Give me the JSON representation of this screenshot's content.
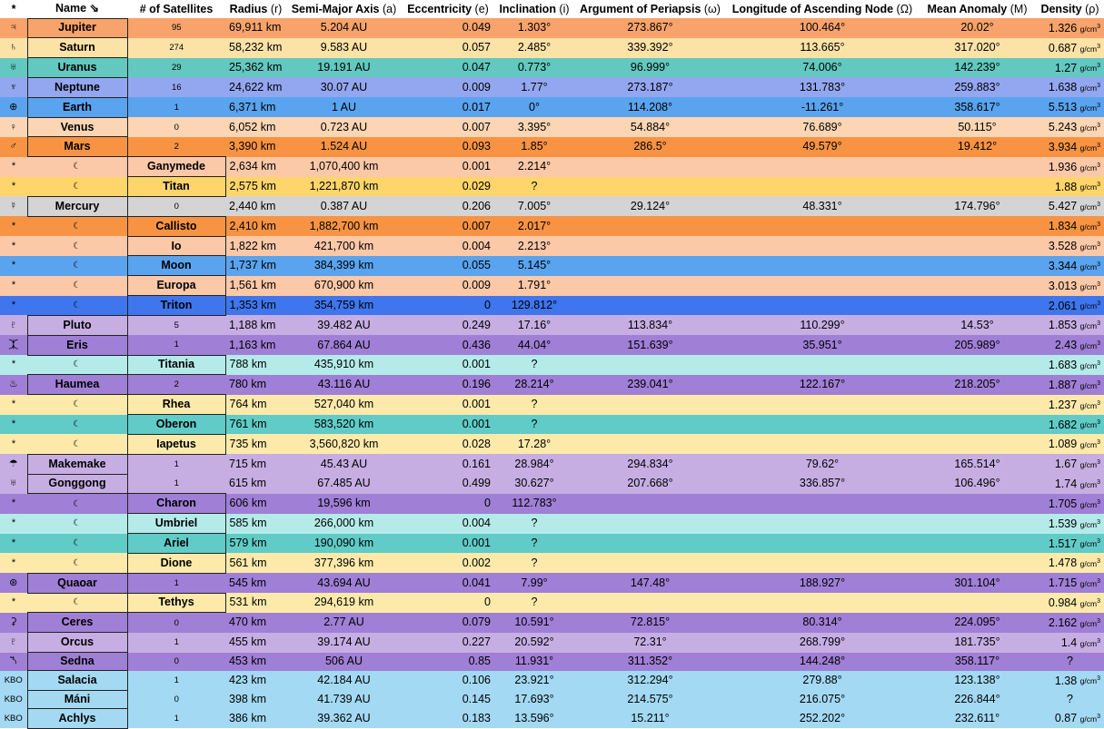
{
  "headers": [
    {
      "main": "*",
      "sub": ""
    },
    {
      "main": "Name",
      "sub": "",
      "icon": "sort-arrow-icon"
    },
    {
      "main": "# of Satellites",
      "sub": ""
    },
    {
      "main": "Radius",
      "sub": "(r)"
    },
    {
      "main": "Semi-Major Axis",
      "sub": "(a)"
    },
    {
      "main": "Eccentricity",
      "sub": "(e)"
    },
    {
      "main": "Inclination",
      "sub": "(i)"
    },
    {
      "main": "Argument of Periapsis",
      "sub": "(ω)"
    },
    {
      "main": "Longitude of Ascending Node",
      "sub": "(Ω)"
    },
    {
      "main": "Mean Anomaly",
      "sub": "(M)"
    },
    {
      "main": "Density",
      "sub": "(ρ)"
    }
  ],
  "density_unit": "g/cm",
  "density_exp": "3",
  "moon_marker": "☾",
  "colors": {
    "orange": "#f8a36b",
    "tan": "#fbe2a6",
    "teal": "#62c8c0",
    "periwinkle": "#93a7f0",
    "blue": "#5aa3ef",
    "peach": "#fcd5b4",
    "darkorange": "#f79343",
    "salmon": "#fbc8a8",
    "gold": "#fdd56a",
    "grey": "#d4d4d4",
    "deepblue": "#3f76ee",
    "lavender": "#c6aee3",
    "purple": "#a07fd6",
    "aqua": "#b4ebe8",
    "cream": "#fdeaaa",
    "lightteal": "#60cbc7",
    "sky": "#a3d9f2",
    "white": "#ffffff"
  },
  "rows": [
    {
      "type": "p",
      "sym": "♃",
      "name": "Jupiter",
      "sats": "95",
      "r": "69,911 km",
      "a": "5.204 AU",
      "e": "0.049",
      "i": "1.303°",
      "w": "273.867°",
      "O": "100.464°",
      "M": "20.02°",
      "rho": "1.326",
      "color": "#f8a36b",
      "ncolor": "#f8a36b"
    },
    {
      "type": "p",
      "sym": "♄",
      "name": "Saturn",
      "sats": "274",
      "r": "58,232 km",
      "a": "9.583 AU",
      "e": "0.057",
      "i": "2.485°",
      "w": "339.392°",
      "O": "113.665°",
      "M": "317.020°",
      "rho": "0.687",
      "color": "#fbe2a6",
      "ncolor": "#fbe2a6"
    },
    {
      "type": "p",
      "sym": "♅",
      "name": "Uranus",
      "sats": "29",
      "r": "25,362 km",
      "a": "19.191 AU",
      "e": "0.047",
      "i": "0.773°",
      "w": "96.999°",
      "O": "74.006°",
      "M": "142.239°",
      "rho": "1.27",
      "color": "#62c8c0",
      "ncolor": "#62c8c0"
    },
    {
      "type": "p",
      "sym": "♆",
      "name": "Neptune",
      "sats": "16",
      "r": "24,622 km",
      "a": "30.07 AU",
      "e": "0.009",
      "i": "1.77°",
      "w": "273.187°",
      "O": "131.783°",
      "M": "259.883°",
      "rho": "1.638",
      "color": "#93a7f0",
      "ncolor": "#93a7f0"
    },
    {
      "type": "p",
      "sym": "⊕",
      "name": "Earth",
      "sats": "1",
      "r": "6,371 km",
      "a": "1 AU",
      "e": "0.017",
      "i": "0°",
      "w": "114.208°",
      "O": "-11.261°",
      "M": "358.617°",
      "rho": "5.513",
      "color": "#5aa3ef",
      "ncolor": "#5aa3ef"
    },
    {
      "type": "p",
      "sym": "♀",
      "name": "Venus",
      "sats": "0",
      "r": "6,052 km",
      "a": "0.723 AU",
      "e": "0.007",
      "i": "3.395°",
      "w": "54.884°",
      "O": "76.689°",
      "M": "50.115°",
      "rho": "5.243",
      "color": "#fcd5b4",
      "ncolor": "#fcd5b4"
    },
    {
      "type": "p",
      "sym": "♂",
      "name": "Mars",
      "sats": "2",
      "r": "3,390 km",
      "a": "1.524 AU",
      "e": "0.093",
      "i": "1.85°",
      "w": "286.5°",
      "O": "49.579°",
      "M": "19.412°",
      "rho": "3.934",
      "color": "#f79343",
      "ncolor": "#f79343"
    },
    {
      "type": "m",
      "sym": "*",
      "name": "Ganymede",
      "r": "2,634 km",
      "a": "1,070,400 km",
      "e": "0.001",
      "i": "2.214°",
      "rho": "1.936",
      "color": "#fbc8a8",
      "ncolor": "#fbc8a8"
    },
    {
      "type": "m",
      "sym": "*",
      "name": "Titan",
      "r": "2,575 km",
      "a": "1,221,870 km",
      "e": "0.029",
      "i": "?",
      "rho": "1.88",
      "color": "#fdd56a",
      "ncolor": "#fdd56a"
    },
    {
      "type": "p",
      "sym": "☿",
      "name": "Mercury",
      "sats": "0",
      "r": "2,440 km",
      "a": "0.387 AU",
      "e": "0.206",
      "i": "7.005°",
      "w": "29.124°",
      "O": "48.331°",
      "M": "174.796°",
      "rho": "5.427",
      "color": "#d4d4d4",
      "ncolor": "#d4d4d4"
    },
    {
      "type": "m",
      "sym": "*",
      "name": "Callisto",
      "r": "2,410 km",
      "a": "1,882,700 km",
      "e": "0.007",
      "i": "2.017°",
      "rho": "1.834",
      "color": "#f79343",
      "ncolor": "#f79343"
    },
    {
      "type": "m",
      "sym": "*",
      "name": "Io",
      "r": "1,822 km",
      "a": "421,700 km",
      "e": "0.004",
      "i": "2.213°",
      "rho": "3.528",
      "color": "#fbc8a8",
      "ncolor": "#fbc8a8"
    },
    {
      "type": "m",
      "sym": "*",
      "name": "Moon",
      "r": "1,737 km",
      "a": "384,399 km",
      "e": "0.055",
      "i": "5.145°",
      "rho": "3.344",
      "color": "#5aa3ef",
      "ncolor": "#5aa3ef"
    },
    {
      "type": "m",
      "sym": "*",
      "name": "Europa",
      "r": "1,561 km",
      "a": "670,900 km",
      "e": "0.009",
      "i": "1.791°",
      "rho": "3.013",
      "color": "#fbc8a8",
      "ncolor": "#fbc8a8"
    },
    {
      "type": "m",
      "sym": "*",
      "name": "Triton",
      "r": "1,353 km",
      "a": "354,759 km",
      "e": "0",
      "i": "129.812°",
      "rho": "2.061",
      "color": "#3f76ee",
      "ncolor": "#3f76ee"
    },
    {
      "type": "p",
      "sym": "♇",
      "name": "Pluto",
      "sats": "5",
      "r": "1,188 km",
      "a": "39.482 AU",
      "e": "0.249",
      "i": "17.16°",
      "w": "113.834°",
      "O": "110.299°",
      "M": "14.53°",
      "rho": "1.853",
      "color": "#c6aee3",
      "ncolor": "#c6aee3"
    },
    {
      "type": "p",
      "sym": "⯰",
      "name": "Eris",
      "sats": "1",
      "r": "1,163 km",
      "a": "67.864 AU",
      "e": "0.436",
      "i": "44.04°",
      "w": "151.639°",
      "O": "35.951°",
      "M": "205.989°",
      "rho": "2.43",
      "color": "#a07fd6",
      "ncolor": "#a07fd6"
    },
    {
      "type": "m",
      "sym": "*",
      "name": "Titania",
      "r": "788 km",
      "a": "435,910 km",
      "e": "0.001",
      "i": "?",
      "rho": "1.683",
      "color": "#b4ebe8",
      "ncolor": "#b4ebe8"
    },
    {
      "type": "p",
      "sym": "♨",
      "name": "Haumea",
      "sats": "2",
      "r": "780 km",
      "a": "43.116 AU",
      "e": "0.196",
      "i": "28.214°",
      "w": "239.041°",
      "O": "122.167°",
      "M": "218.205°",
      "rho": "1.887",
      "color": "#a07fd6",
      "ncolor": "#a07fd6"
    },
    {
      "type": "m",
      "sym": "*",
      "name": "Rhea",
      "r": "764 km",
      "a": "527,040 km",
      "e": "0.001",
      "i": "?",
      "rho": "1.237",
      "color": "#fdeaaa",
      "ncolor": "#fdeaaa"
    },
    {
      "type": "m",
      "sym": "*",
      "name": "Oberon",
      "r": "761 km",
      "a": "583,520 km",
      "e": "0.001",
      "i": "?",
      "rho": "1.682",
      "color": "#60cbc7",
      "ncolor": "#60cbc7"
    },
    {
      "type": "m",
      "sym": "*",
      "name": "Iapetus",
      "r": "735 km",
      "a": "3,560,820 km",
      "e": "0.028",
      "i": "17.28°",
      "rho": "1.089",
      "color": "#fdeaaa",
      "ncolor": "#fdeaaa"
    },
    {
      "type": "p",
      "sym": "☂",
      "name": "Makemake",
      "sats": "1",
      "r": "715 km",
      "a": "45.43 AU",
      "e": "0.161",
      "i": "28.984°",
      "w": "294.834°",
      "O": "79.62°",
      "M": "165.514°",
      "rho": "1.67",
      "color": "#c6aee3",
      "ncolor": "#c6aee3"
    },
    {
      "type": "p",
      "sym": "♅",
      "name": "Gonggong",
      "sats": "1",
      "r": "615 km",
      "a": "67.485 AU",
      "e": "0.499",
      "i": "30.627°",
      "w": "207.668°",
      "O": "336.857°",
      "M": "106.496°",
      "rho": "1.74",
      "color": "#c6aee3",
      "ncolor": "#c6aee3"
    },
    {
      "type": "m",
      "sym": "*",
      "name": "Charon",
      "r": "606 km",
      "a": "19,596 km",
      "e": "0",
      "i": "112.783°",
      "rho": "1.705",
      "color": "#a07fd6",
      "ncolor": "#a07fd6"
    },
    {
      "type": "m",
      "sym": "*",
      "name": "Umbriel",
      "r": "585 km",
      "a": "266,000 km",
      "e": "0.004",
      "i": "?",
      "rho": "1.539",
      "color": "#b4ebe8",
      "ncolor": "#b4ebe8"
    },
    {
      "type": "m",
      "sym": "*",
      "name": "Ariel",
      "r": "579 km",
      "a": "190,090 km",
      "e": "0.001",
      "i": "?",
      "rho": "1.517",
      "color": "#60cbc7",
      "ncolor": "#60cbc7"
    },
    {
      "type": "m",
      "sym": "*",
      "name": "Dione",
      "r": "561 km",
      "a": "377,396 km",
      "e": "0.002",
      "i": "?",
      "rho": "1.478",
      "color": "#fdeaaa",
      "ncolor": "#fdeaaa"
    },
    {
      "type": "p",
      "sym": "⊛",
      "name": "Quaoar",
      "sats": "1",
      "r": "545 km",
      "a": "43.694 AU",
      "e": "0.041",
      "i": "7.99°",
      "w": "147.48°",
      "O": "188.927°",
      "M": "301.104°",
      "rho": "1.715",
      "color": "#a07fd6",
      "ncolor": "#a07fd6"
    },
    {
      "type": "m",
      "sym": "*",
      "name": "Tethys",
      "r": "531 km",
      "a": "294,619 km",
      "e": "0",
      "i": "?",
      "rho": "0.984",
      "color": "#fdeaaa",
      "ncolor": "#fdeaaa"
    },
    {
      "type": "p",
      "sym": "⚳",
      "name": "Ceres",
      "sats": "0",
      "r": "470 km",
      "a": "2.77 AU",
      "e": "0.079",
      "i": "10.591°",
      "w": "72.815°",
      "O": "80.314°",
      "M": "224.095°",
      "rho": "2.162",
      "color": "#a07fd6",
      "ncolor": "#a07fd6"
    },
    {
      "type": "p",
      "sym": "♇",
      "name": "Orcus",
      "sats": "1",
      "r": "455 km",
      "a": "39.174 AU",
      "e": "0.227",
      "i": "20.592°",
      "w": "72.31°",
      "O": "268.799°",
      "M": "181.735°",
      "rho": "1.4",
      "color": "#c6aee3",
      "ncolor": "#c6aee3"
    },
    {
      "type": "p",
      "sym": "⯲",
      "name": "Sedna",
      "sats": "0",
      "r": "453 km",
      "a": "506 AU",
      "e": "0.85",
      "i": "11.931°",
      "w": "311.352°",
      "O": "144.248°",
      "M": "358.117°",
      "rho": "?",
      "color": "#a07fd6",
      "ncolor": "#a07fd6"
    },
    {
      "type": "k",
      "sym": "KBO",
      "name": "Salacia",
      "sats": "1",
      "r": "423 km",
      "a": "42.184 AU",
      "e": "0.106",
      "i": "23.921°",
      "w": "312.294°",
      "O": "279.88°",
      "M": "123.138°",
      "rho": "1.38",
      "color": "#a3d9f2",
      "ncolor": "#a3d9f2"
    },
    {
      "type": "k",
      "sym": "KBO",
      "name": "Máni",
      "sats": "0",
      "r": "398 km",
      "a": "41.739 AU",
      "e": "0.145",
      "i": "17.693°",
      "w": "214.575°",
      "O": "216.075°",
      "M": "226.844°",
      "rho": "?",
      "color": "#a3d9f2",
      "ncolor": "#a3d9f2"
    },
    {
      "type": "k",
      "sym": "KBO",
      "name": "Achlys",
      "sats": "1",
      "r": "386 km",
      "a": "39.362 AU",
      "e": "0.183",
      "i": "13.596°",
      "w": "15.211°",
      "O": "252.202°",
      "M": "232.611°",
      "rho": "0.87",
      "color": "#a3d9f2",
      "ncolor": "#a3d9f2"
    }
  ]
}
